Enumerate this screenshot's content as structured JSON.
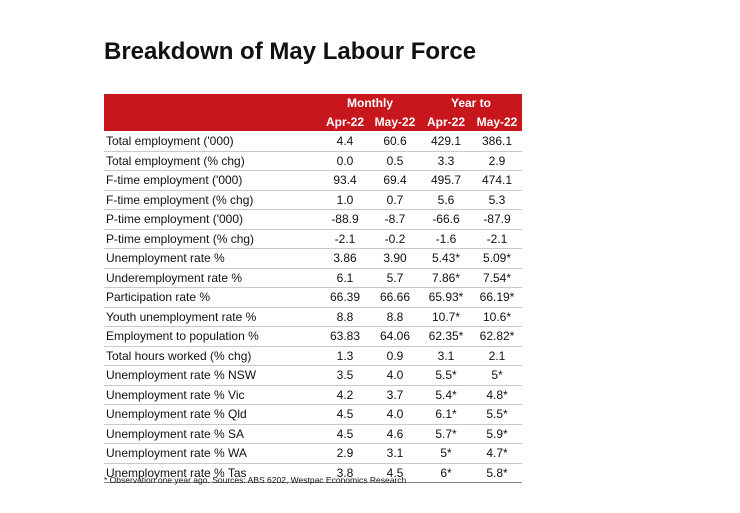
{
  "title": "Breakdown of May Labour Force",
  "table": {
    "group_headers": [
      "",
      "Monthly",
      "Year to"
    ],
    "column_headers": [
      "",
      "Apr-22",
      "May-22",
      "Apr-22",
      "May-22"
    ],
    "rows": [
      [
        "Total employment ('000)",
        "4.4",
        "60.6",
        "429.1",
        "386.1"
      ],
      [
        "Total employment (% chg)",
        "0.0",
        "0.5",
        "3.3",
        "2.9"
      ],
      [
        "F-time employment ('000)",
        "93.4",
        "69.4",
        "495.7",
        "474.1"
      ],
      [
        "F-time employment (% chg)",
        "1.0",
        "0.7",
        "5.6",
        "5.3"
      ],
      [
        "P-time employment ('000)",
        "-88.9",
        "-8.7",
        "-66.6",
        "-87.9"
      ],
      [
        "P-time employment (% chg)",
        "-2.1",
        "-0.2",
        "-1.6",
        "-2.1"
      ],
      [
        "Unemployment rate %",
        "3.86",
        "3.90",
        "5.43*",
        "5.09*"
      ],
      [
        "Underemployment rate %",
        "6.1",
        "5.7",
        "7.86*",
        "7.54*"
      ],
      [
        "Participation rate %",
        "66.39",
        "66.66",
        "65.93*",
        "66.19*"
      ],
      [
        "Youth unemployment rate %",
        "8.8",
        "8.8",
        "10.7*",
        "10.6*"
      ],
      [
        "Employment to population %",
        "63.83",
        "64.06",
        "62.35*",
        "62.82*"
      ],
      [
        "Total hours worked (% chg)",
        "1.3",
        "0.9",
        "3.1",
        "2.1"
      ],
      [
        "Unemployment rate % NSW",
        "3.5",
        "4.0",
        "5.5*",
        "5*"
      ],
      [
        "Unemployment rate % Vic",
        "4.2",
        "3.7",
        "5.4*",
        "4.8*"
      ],
      [
        "Unemployment rate % Qld",
        "4.5",
        "4.0",
        "6.1*",
        "5.5*"
      ],
      [
        "Unemployment rate % SA",
        "4.5",
        "4.6",
        "5.7*",
        "5.9*"
      ],
      [
        "Unemployment rate % WA",
        "2.9",
        "3.1",
        "5*",
        "4.7*"
      ],
      [
        "Unemployment rate % Tas",
        "3.8",
        "4.5",
        "6*",
        "5.8*"
      ]
    ]
  },
  "footnote": "* Observation one year ago.  Sources: ABS 6202, Westpac Economics Research",
  "colors": {
    "header_bg": "#c8161d",
    "header_text": "#ffffff"
  }
}
